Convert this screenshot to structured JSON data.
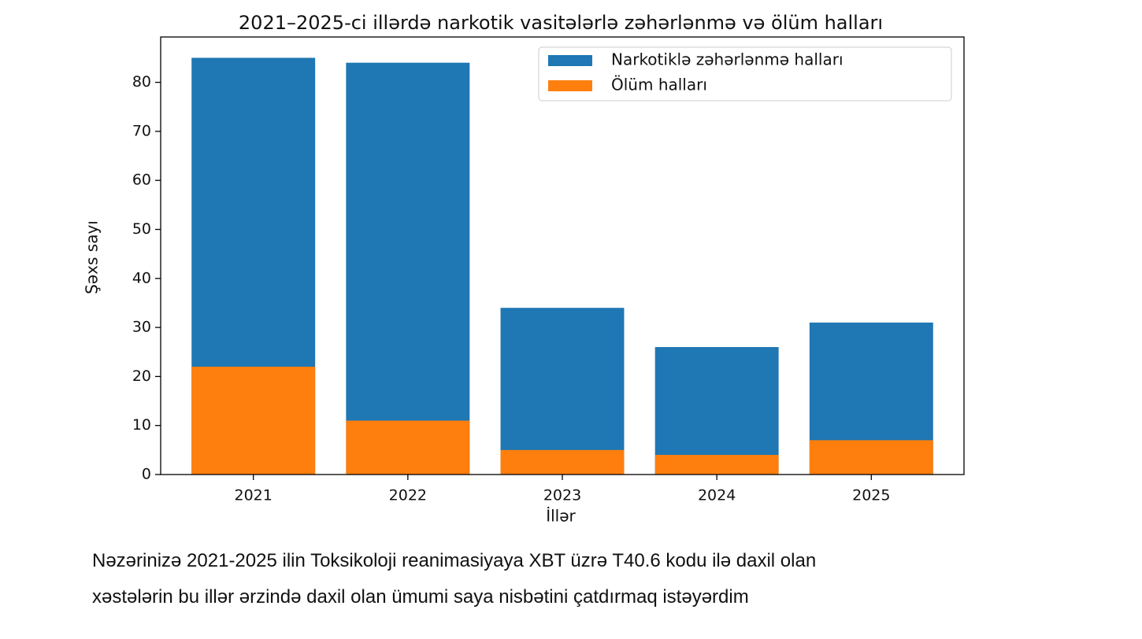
{
  "chart_data": {
    "type": "bar",
    "title": "2021–2025-ci illərdə narkotik vasitələrlə zəhərlənmə və ölüm halları",
    "x_label": "İllər",
    "y_label": "Şəxs sayı",
    "categories": [
      "2021",
      "2022",
      "2023",
      "2024",
      "2025"
    ],
    "series": [
      {
        "name": "Narkotiklə zəhərlənmə halları",
        "color": "#1f77b4",
        "values": [
          85,
          84,
          34,
          26,
          31
        ]
      },
      {
        "name": "Ölüm halları",
        "color": "#ff7f0e",
        "values": [
          22,
          11,
          5,
          4,
          7
        ]
      }
    ],
    "ylim": [
      0,
      89.25
    ],
    "yticks": [
      0,
      10,
      20,
      30,
      40,
      50,
      60,
      70,
      80
    ],
    "grid": false,
    "legend": "upper right"
  },
  "caption": [
    "Nəzərinizə 2021-2025 ilin Toksikoloji reanimasiyaya XBT üzrə T40.6 kodu ilə daxil olan",
    "xəstələrin bu illər ərzində daxil olan ümumi saya nisbətini çatdırmaq istəyərdim"
  ]
}
